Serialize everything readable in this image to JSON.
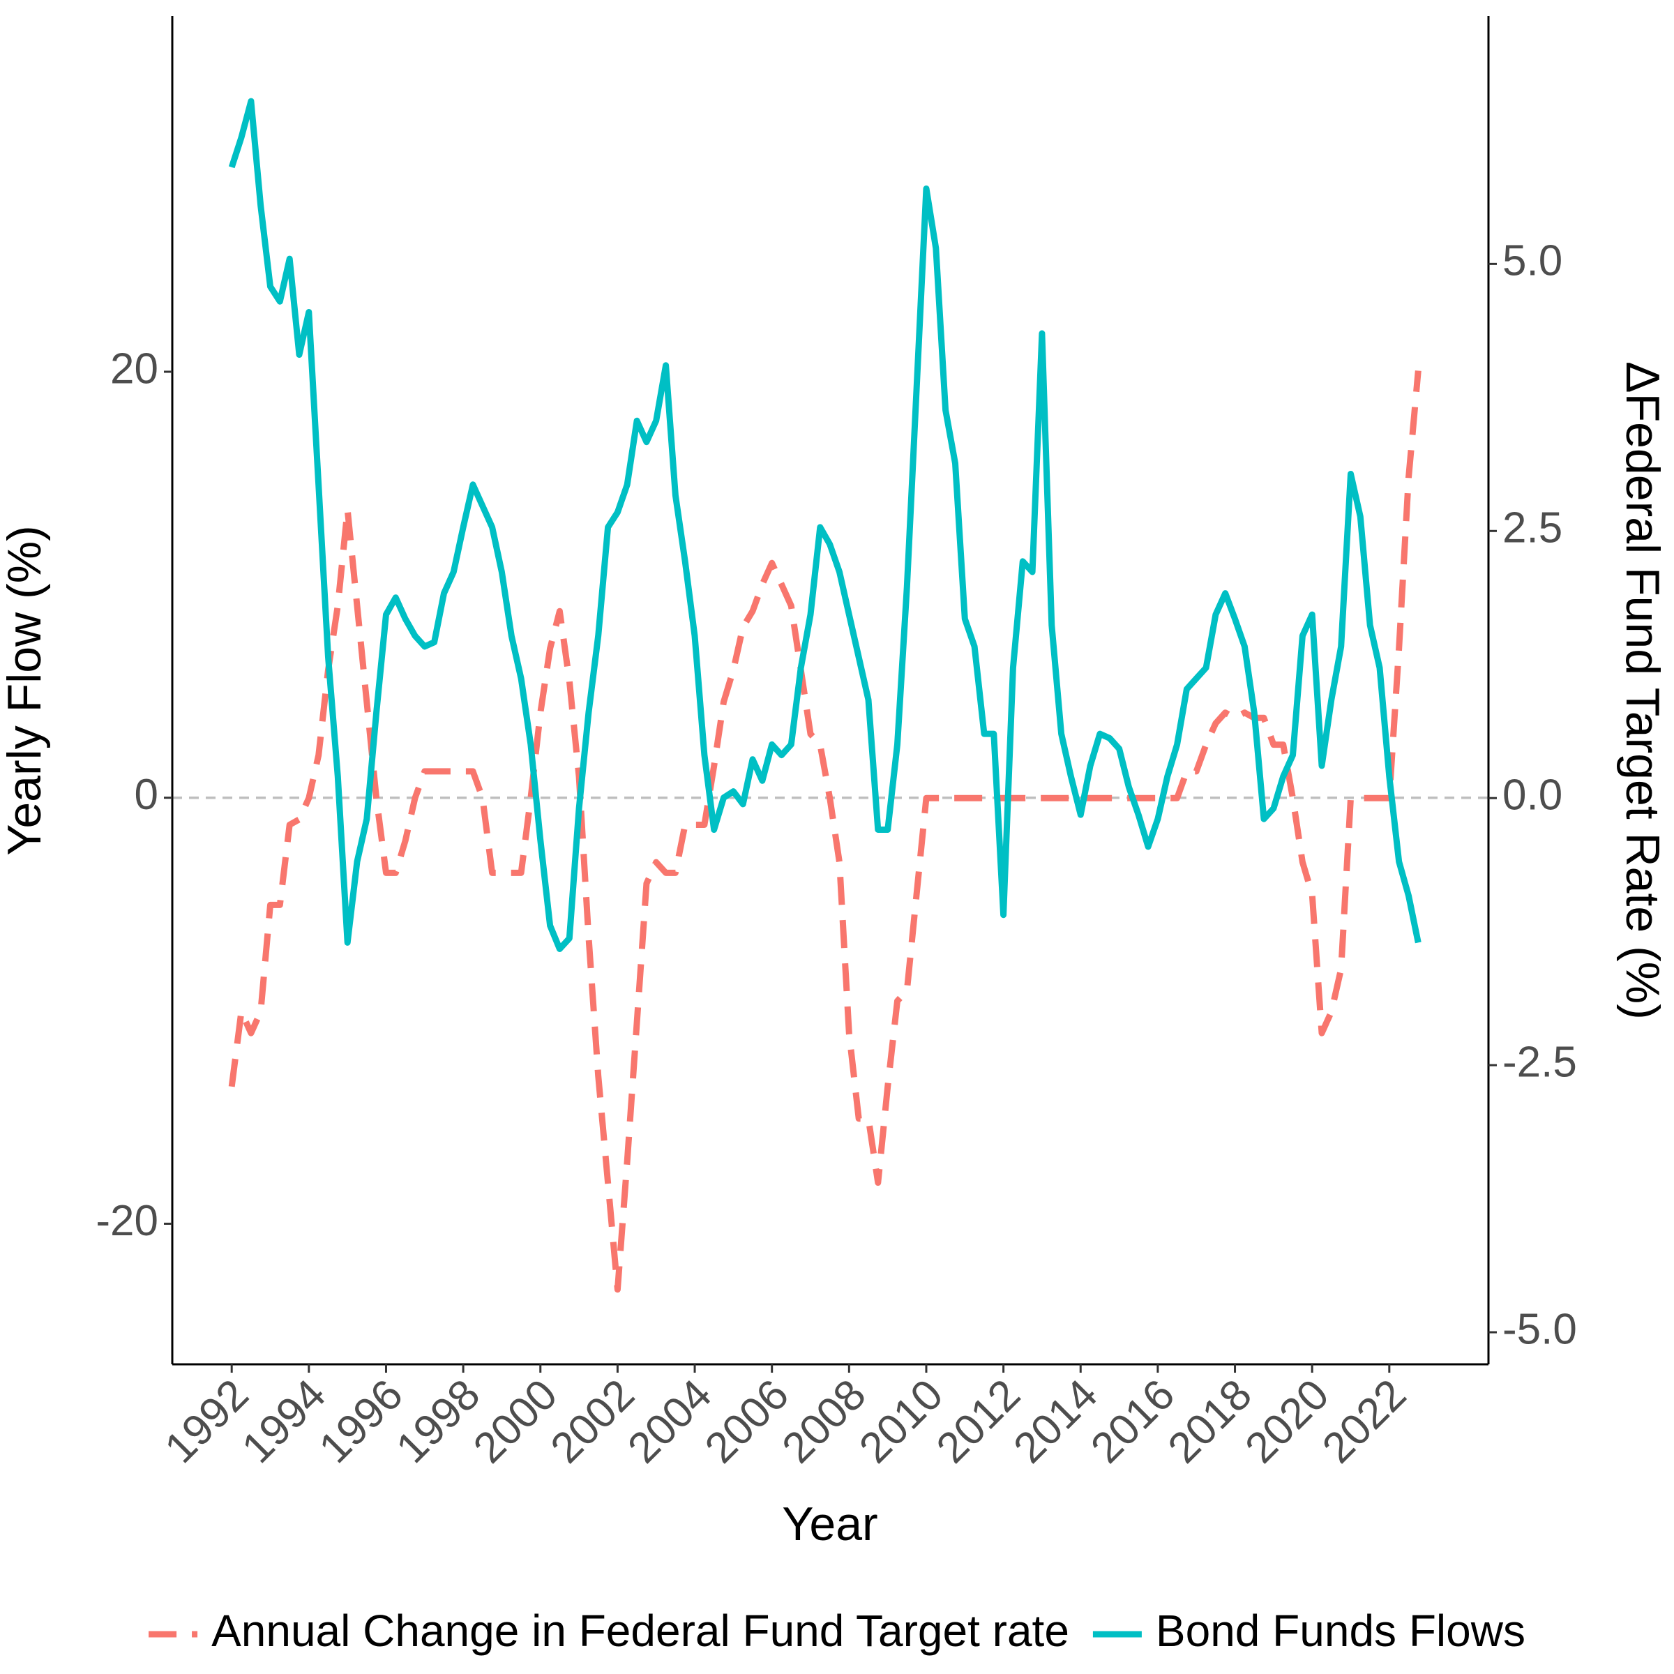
{
  "chart_data": {
    "type": "line",
    "x_label": "Year",
    "y_label": "Yearly Flow (%)",
    "y2_label": "ΔFederal Fund Target Rate (%)",
    "xlim": [
      1990.46,
      2024.57
    ],
    "xticks": [
      1992,
      1994,
      1996,
      1998,
      2000,
      2002,
      2004,
      2006,
      2008,
      2010,
      2012,
      2014,
      2016,
      2018,
      2020,
      2022
    ],
    "ylim": [
      -26.6,
      36.7
    ],
    "yticks": [
      -20,
      0,
      20
    ],
    "y2lim": [
      -5.3,
      7.32
    ],
    "y2ticks": [
      {
        "value": -5,
        "label": "-5.0"
      },
      {
        "value": -2.5,
        "label": "-2.5"
      },
      {
        "value": 0,
        "label": "0.0"
      },
      {
        "value": 2.5,
        "label": "2.5"
      },
      {
        "value": 5,
        "label": "5.0"
      }
    ],
    "hline": 0,
    "legend": "bottom",
    "x": [
      1992,
      1992.25,
      1992.5,
      1992.75,
      1993,
      1993.25,
      1993.5,
      1993.75,
      1994,
      1994.25,
      1994.5,
      1994.75,
      1995,
      1995.25,
      1995.5,
      1995.75,
      1996,
      1996.25,
      1996.5,
      1996.75,
      1997,
      1997.25,
      1997.5,
      1997.75,
      1998,
      1998.25,
      1998.5,
      1998.75,
      1999,
      1999.25,
      1999.5,
      1999.75,
      2000,
      2000.25,
      2000.5,
      2000.75,
      2001,
      2001.25,
      2001.5,
      2001.75,
      2002,
      2002.25,
      2002.5,
      2002.75,
      2003,
      2003.25,
      2003.5,
      2003.75,
      2004,
      2004.25,
      2004.5,
      2004.75,
      2005,
      2005.25,
      2005.5,
      2005.75,
      2006,
      2006.25,
      2006.5,
      2006.75,
      2007,
      2007.25,
      2007.5,
      2007.75,
      2008,
      2008.25,
      2008.5,
      2008.75,
      2009,
      2009.25,
      2009.5,
      2009.75,
      2010,
      2010.25,
      2010.5,
      2010.75,
      2011,
      2011.25,
      2011.5,
      2011.75,
      2012,
      2012.25,
      2012.5,
      2012.75,
      2013,
      2013.25,
      2013.5,
      2013.75,
      2014,
      2014.25,
      2014.5,
      2014.75,
      2015,
      2015.25,
      2015.5,
      2015.75,
      2016,
      2016.25,
      2016.5,
      2016.75,
      2017,
      2017.25,
      2017.5,
      2017.75,
      2018,
      2018.25,
      2018.5,
      2018.75,
      2019,
      2019.25,
      2019.5,
      2019.75,
      2020,
      2020.25,
      2020.5,
      2020.75,
      2021,
      2021.25,
      2021.5,
      2021.75,
      2022,
      2022.25,
      2022.5,
      2022.75
    ],
    "series": [
      {
        "name": "Annual Change in Federal Fund Target rate",
        "color": "#F8766D",
        "linestyle": "dashed",
        "axis": "y2",
        "values": [
          -2.7,
          -2,
          -2.2,
          -2,
          -1,
          -1,
          -0.25,
          -0.2,
          0,
          0.4,
          1.2,
          1.8,
          2.7,
          1.8,
          0.9,
          0,
          -0.7,
          -0.7,
          -0.4,
          0,
          0.25,
          0.25,
          0.25,
          0.25,
          0.25,
          0.25,
          0,
          -0.7,
          -0.7,
          -0.7,
          -0.7,
          0,
          0.8,
          1.4,
          1.75,
          1.1,
          0.2,
          -1.3,
          -2.6,
          -3.6,
          -4.6,
          -3.4,
          -2.1,
          -0.8,
          -0.6,
          -0.7,
          -0.7,
          -0.25,
          -0.25,
          -0.25,
          0.3,
          0.9,
          1.2,
          1.6,
          1.75,
          2,
          2.2,
          2,
          1.8,
          1.2,
          0.6,
          0.5,
          0,
          -0.6,
          -2.2,
          -3,
          -3,
          -3.6,
          -2.7,
          -1.9,
          -1.8,
          -0.9,
          0,
          0,
          0,
          0,
          0,
          0,
          0,
          0,
          0,
          0,
          0,
          0,
          0,
          0,
          0,
          0,
          0,
          0,
          0,
          0,
          0,
          0,
          0,
          0,
          0,
          0,
          0,
          0.25,
          0.25,
          0.5,
          0.7,
          0.8,
          0.75,
          0.8,
          0.75,
          0.75,
          0.5,
          0.5,
          0,
          -0.6,
          -0.9,
          -2.2,
          -2,
          -1.6,
          0,
          0,
          0,
          0,
          0,
          1.4,
          3,
          4
        ]
      },
      {
        "name": "Bond Funds Flows",
        "color": "#00BFC4",
        "linestyle": "solid",
        "axis": "y",
        "values": [
          29.6,
          31,
          32.7,
          27.8,
          24,
          23.3,
          25.3,
          20.8,
          22.8,
          14.7,
          6.6,
          1,
          -6.8,
          -3,
          -1,
          4,
          8.6,
          9.4,
          8.4,
          7.6,
          7.1,
          7.3,
          9.6,
          10.6,
          12.7,
          14.7,
          13.7,
          12.7,
          10.6,
          7.6,
          5.6,
          2.5,
          -2,
          -6,
          -7.1,
          -6.6,
          -0.5,
          4,
          7.6,
          12.7,
          13.4,
          14.7,
          17.7,
          16.7,
          17.7,
          20.3,
          14.2,
          11.1,
          7.6,
          2,
          -1.5,
          0,
          0.3,
          -0.3,
          1.8,
          0.8,
          2.5,
          2,
          2.5,
          6.1,
          8.6,
          12.7,
          11.9,
          10.6,
          8.6,
          6.6,
          4.6,
          -1.5,
          -1.5,
          2.5,
          9.9,
          19.2,
          28.6,
          25.8,
          18.2,
          15.7,
          8.4,
          7.1,
          3,
          3,
          -5.5,
          6.1,
          11.1,
          10.6,
          21.8,
          8.1,
          3,
          1,
          -0.8,
          1.5,
          3,
          2.8,
          2.3,
          0.5,
          -0.8,
          -2.3,
          -1,
          1,
          2.5,
          5.1,
          5.6,
          6.1,
          8.6,
          9.6,
          8.4,
          7.1,
          4,
          -1,
          -0.5,
          1,
          2,
          7.6,
          8.6,
          1.5,
          4.6,
          7.1,
          15.2,
          13.2,
          8.1,
          6.1,
          1,
          -3,
          -4.6,
          -6.8
        ]
      }
    ]
  }
}
